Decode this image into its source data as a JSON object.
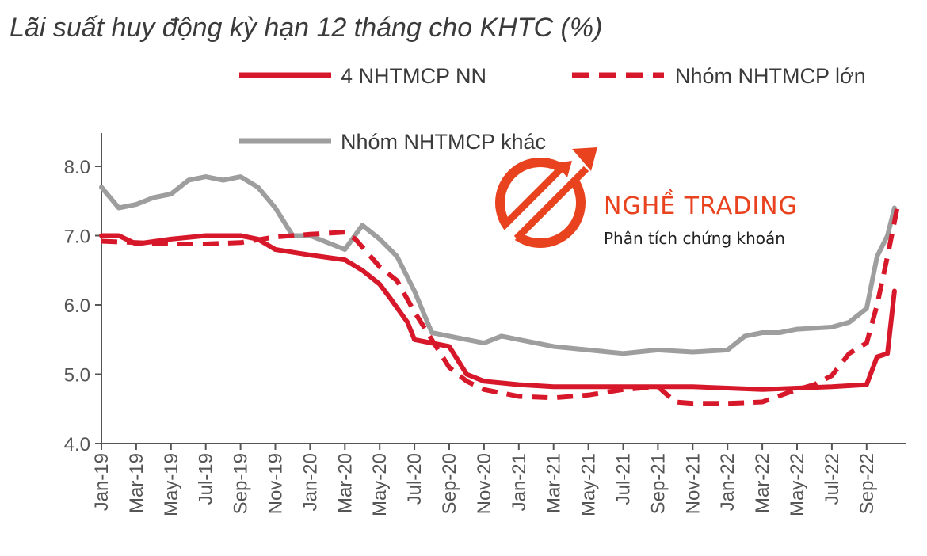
{
  "chart_data": {
    "type": "line",
    "title": "Lãi suất huy động kỳ hạn 12 tháng cho KHTC (%)",
    "ylim": [
      4.0,
      8.0
    ],
    "yticks": [
      "8.0",
      "7.0",
      "6.0",
      "5.0",
      "4.0"
    ],
    "xticks": [
      "Jan-19",
      "Mar-19",
      "May-19",
      "Jul-19",
      "Sep-19",
      "Nov-19",
      "Jan-20",
      "Mar-20",
      "May-20",
      "Jul-20",
      "Sep-20",
      "Nov-20",
      "Jan-21",
      "Mar-21",
      "May-21",
      "Jul-21",
      "Sep-21",
      "Nov-21",
      "Jan-22",
      "Mar-22",
      "May-22",
      "Jul-22",
      "Sep-22"
    ],
    "grid": false,
    "legend": "top",
    "series": [
      {
        "name": "4 NHTMCP NN",
        "color": "#d7182a",
        "style": "solid",
        "points": [
          [
            0,
            7.0
          ],
          [
            0.5,
            7.0
          ],
          [
            1,
            6.88
          ],
          [
            2,
            6.95
          ],
          [
            3,
            7.0
          ],
          [
            4,
            7.0
          ],
          [
            4.5,
            6.95
          ],
          [
            5,
            6.8
          ],
          [
            6,
            6.72
          ],
          [
            7,
            6.65
          ],
          [
            7.5,
            6.5
          ],
          [
            8,
            6.3
          ],
          [
            8.3,
            6.1
          ],
          [
            8.8,
            5.75
          ],
          [
            9,
            5.5
          ],
          [
            10,
            5.4
          ],
          [
            10.5,
            5.0
          ],
          [
            11,
            4.9
          ],
          [
            12,
            4.85
          ],
          [
            13,
            4.82
          ],
          [
            14,
            4.82
          ],
          [
            15,
            4.82
          ],
          [
            16,
            4.82
          ],
          [
            17,
            4.82
          ],
          [
            18,
            4.8
          ],
          [
            19,
            4.78
          ],
          [
            20,
            4.8
          ],
          [
            21,
            4.82
          ],
          [
            22,
            4.85
          ],
          [
            22.3,
            5.25
          ],
          [
            22.6,
            5.3
          ],
          [
            22.8,
            6.2
          ]
        ]
      },
      {
        "name": "Nhóm NHTMCP lớn",
        "color": "#d7182a",
        "style": "dashed",
        "points": [
          [
            0,
            6.92
          ],
          [
            1,
            6.9
          ],
          [
            2,
            6.88
          ],
          [
            3,
            6.88
          ],
          [
            4,
            6.9
          ],
          [
            5,
            6.98
          ],
          [
            6,
            7.02
          ],
          [
            7,
            7.05
          ],
          [
            7.3,
            6.95
          ],
          [
            8,
            6.55
          ],
          [
            8.5,
            6.35
          ],
          [
            9,
            5.9
          ],
          [
            9.5,
            5.5
          ],
          [
            10,
            5.1
          ],
          [
            10.5,
            4.9
          ],
          [
            11,
            4.78
          ],
          [
            12,
            4.68
          ],
          [
            13,
            4.66
          ],
          [
            14,
            4.7
          ],
          [
            15,
            4.78
          ],
          [
            16,
            4.82
          ],
          [
            16.5,
            4.6
          ],
          [
            17,
            4.58
          ],
          [
            18,
            4.58
          ],
          [
            19,
            4.6
          ],
          [
            20,
            4.78
          ],
          [
            20.5,
            4.85
          ],
          [
            21,
            4.98
          ],
          [
            21.5,
            5.3
          ],
          [
            22,
            5.45
          ],
          [
            22.3,
            6.0
          ],
          [
            22.6,
            6.7
          ],
          [
            22.9,
            7.45
          ]
        ]
      },
      {
        "name": "Nhóm NHTMCP khác",
        "color": "#9e9e9e",
        "style": "solid",
        "points": [
          [
            0,
            7.7
          ],
          [
            0.5,
            7.4
          ],
          [
            1,
            7.45
          ],
          [
            1.5,
            7.55
          ],
          [
            2,
            7.6
          ],
          [
            2.5,
            7.8
          ],
          [
            3,
            7.85
          ],
          [
            3.5,
            7.8
          ],
          [
            4,
            7.85
          ],
          [
            4.5,
            7.7
          ],
          [
            5,
            7.4
          ],
          [
            5.5,
            7.0
          ],
          [
            6,
            7.0
          ],
          [
            7,
            6.8
          ],
          [
            7.5,
            7.15
          ],
          [
            8,
            6.95
          ],
          [
            8.5,
            6.7
          ],
          [
            9,
            6.2
          ],
          [
            9.5,
            5.6
          ],
          [
            10,
            5.55
          ],
          [
            11,
            5.45
          ],
          [
            11.5,
            5.55
          ],
          [
            12,
            5.5
          ],
          [
            13,
            5.4
          ],
          [
            14,
            5.35
          ],
          [
            15,
            5.3
          ],
          [
            16,
            5.35
          ],
          [
            17,
            5.32
          ],
          [
            18,
            5.35
          ],
          [
            18.5,
            5.55
          ],
          [
            19,
            5.6
          ],
          [
            19.5,
            5.6
          ],
          [
            20,
            5.65
          ],
          [
            21,
            5.68
          ],
          [
            21.5,
            5.75
          ],
          [
            22,
            5.95
          ],
          [
            22.3,
            6.7
          ],
          [
            22.6,
            7.0
          ],
          [
            22.8,
            7.4
          ]
        ]
      }
    ]
  },
  "watermark": {
    "name": "NGHỀ TRADING",
    "tagline": "Phân tích chứng khoán",
    "color": "#e8431e"
  }
}
